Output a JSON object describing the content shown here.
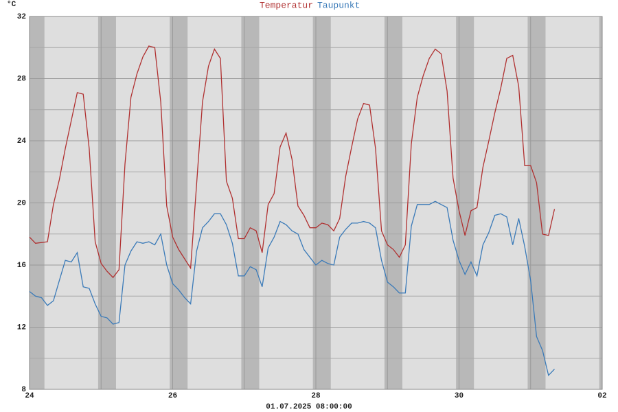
{
  "chart_data": {
    "type": "line",
    "y_unit": "°C",
    "footer": "01.07.2025 08:00:00",
    "x": [
      0,
      2,
      4,
      6,
      8,
      10,
      12,
      14,
      16,
      18,
      20,
      22,
      24,
      26,
      28,
      30,
      32,
      34,
      36,
      38,
      40,
      42,
      44,
      46,
      48,
      50,
      52,
      54,
      56,
      58,
      60,
      62,
      64,
      66,
      68,
      70,
      72,
      74,
      76,
      78,
      80,
      82,
      84,
      86,
      88,
      90,
      92,
      94,
      96,
      98,
      100,
      102,
      104,
      106,
      108,
      110,
      112,
      114,
      116,
      118,
      120,
      122,
      124,
      126,
      128,
      130,
      132,
      134,
      136,
      138,
      140,
      142,
      144,
      146,
      148,
      150,
      152,
      154,
      156,
      158,
      160,
      162,
      164,
      166,
      168,
      170,
      172,
      174,
      176
    ],
    "series": [
      {
        "name": "Temperatur",
        "color": "#b03030",
        "values": [
          17.8,
          17.4,
          17.45,
          17.5,
          19.9,
          21.5,
          23.5,
          25.3,
          27.1,
          27.0,
          23.5,
          17.5,
          16.1,
          15.6,
          15.2,
          15.7,
          22.5,
          26.8,
          28.3,
          29.4,
          30.1,
          30.0,
          26.5,
          19.8,
          17.8,
          17.0,
          16.4,
          15.8,
          21.2,
          26.5,
          28.8,
          29.9,
          29.3,
          21.4,
          20.3,
          17.7,
          17.7,
          18.4,
          18.2,
          16.8,
          19.9,
          20.6,
          23.6,
          24.5,
          22.8,
          19.8,
          19.2,
          18.4,
          18.4,
          18.7,
          18.6,
          18.2,
          19.0,
          21.7,
          23.6,
          25.4,
          26.4,
          26.3,
          23.5,
          18.2,
          17.3,
          17.0,
          16.5,
          17.3,
          23.8,
          26.8,
          28.2,
          29.3,
          29.9,
          29.6,
          27.2,
          21.6,
          19.5,
          17.9,
          19.5,
          19.7,
          22.3,
          24.0,
          25.8,
          27.4,
          29.3,
          29.5,
          27.5,
          22.4,
          22.4,
          21.3,
          18.0,
          17.9,
          19.6
        ]
      },
      {
        "name": "Taupunkt",
        "color": "#3a7ab8",
        "values": [
          14.3,
          14.0,
          13.9,
          13.4,
          13.7,
          15.0,
          16.3,
          16.2,
          16.8,
          14.6,
          14.5,
          13.5,
          12.7,
          12.6,
          12.2,
          12.3,
          16.0,
          16.9,
          17.5,
          17.4,
          17.5,
          17.3,
          18.0,
          16.0,
          14.8,
          14.4,
          13.9,
          13.5,
          16.9,
          18.4,
          18.8,
          19.3,
          19.3,
          18.6,
          17.4,
          15.3,
          15.3,
          15.9,
          15.7,
          14.6,
          17.1,
          17.8,
          18.8,
          18.6,
          18.2,
          18.0,
          17.0,
          16.5,
          16.0,
          16.3,
          16.1,
          16.0,
          17.8,
          18.3,
          18.7,
          18.7,
          18.8,
          18.7,
          18.4,
          16.3,
          14.9,
          14.6,
          14.2,
          14.2,
          18.5,
          19.9,
          19.9,
          19.9,
          20.1,
          19.9,
          19.7,
          17.6,
          16.3,
          15.4,
          16.2,
          15.3,
          17.3,
          18.1,
          19.2,
          19.3,
          19.1,
          17.3,
          19.0,
          17.2,
          15.0,
          11.4,
          10.5,
          8.9,
          9.3
        ]
      }
    ],
    "xlim": [
      0,
      192
    ],
    "xticks": [
      {
        "value": 0,
        "label": "24"
      },
      {
        "value": 48,
        "label": "26"
      },
      {
        "value": 96,
        "label": "28"
      },
      {
        "value": 144,
        "label": "30"
      },
      {
        "value": 192,
        "label": "02"
      }
    ],
    "ylim": [
      8,
      32
    ],
    "yticks": [
      8,
      12,
      16,
      20,
      24,
      28,
      32
    ],
    "grid": true
  }
}
